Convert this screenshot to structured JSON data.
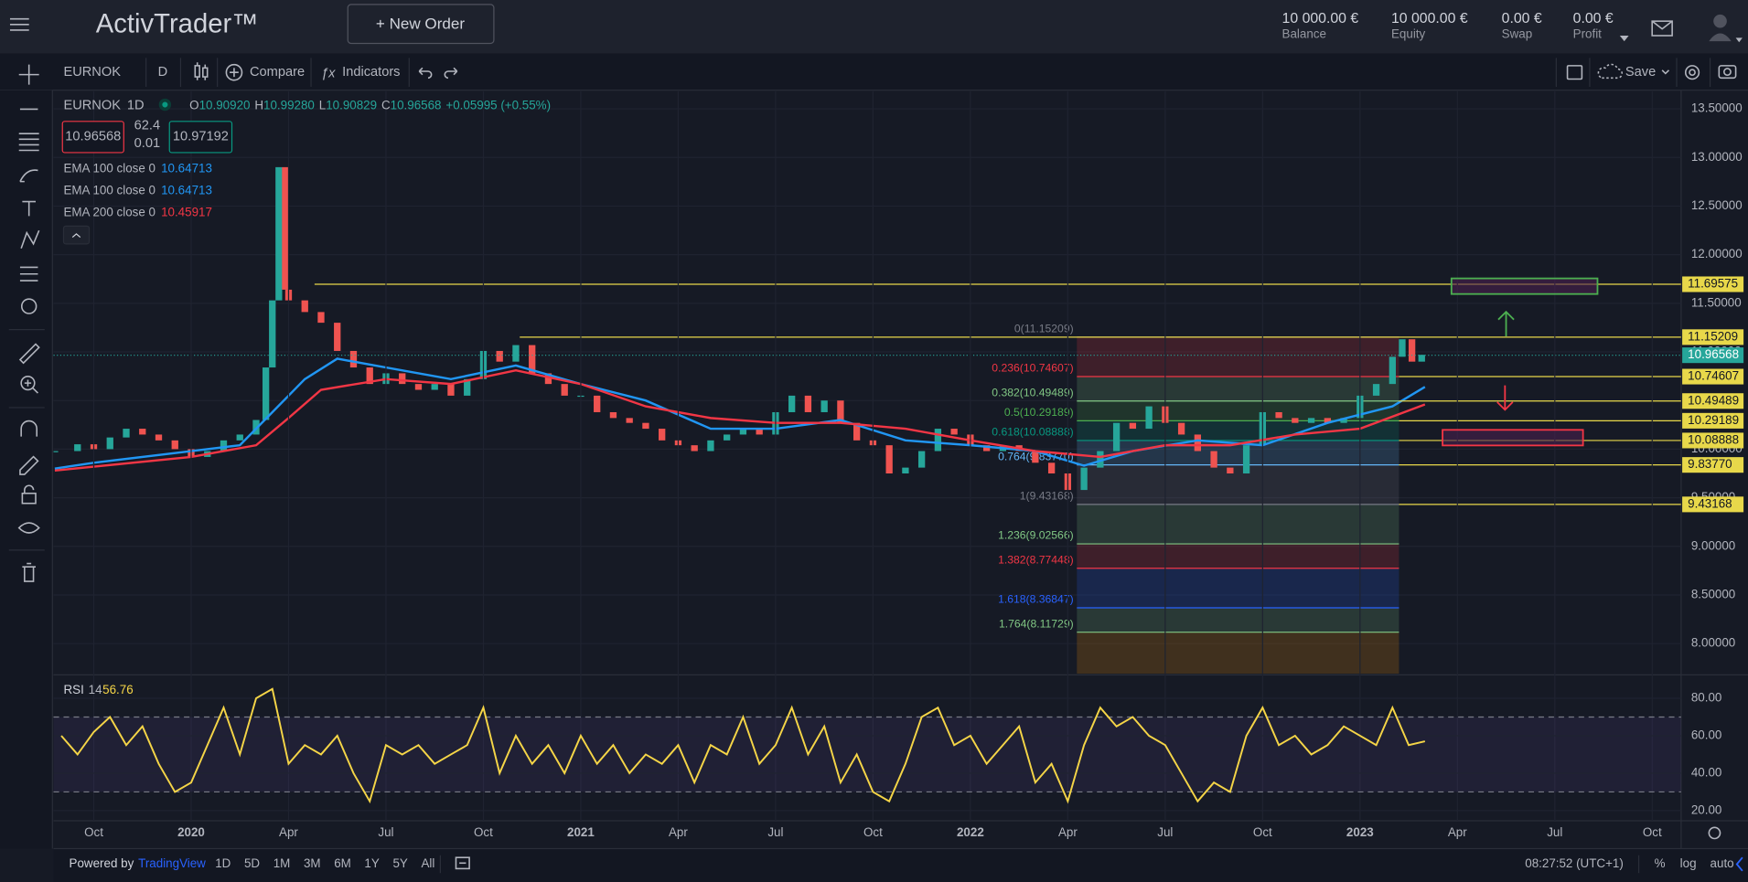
{
  "header": {
    "logo": "ActivTrader™",
    "new_order": "+  New Order",
    "account": [
      {
        "value": "10 000.00 €",
        "label": "Balance"
      },
      {
        "value": "10 000.00 €",
        "label": "Equity"
      },
      {
        "value": "0.00 €",
        "label": "Swap"
      },
      {
        "value": "0.00 €",
        "label": "Profit"
      }
    ]
  },
  "toolbar": {
    "symbol": "EURNOK",
    "interval": "D",
    "compare": "Compare",
    "indicators": "Indicators",
    "save": "Save"
  },
  "legend": {
    "symbol": "EURNOK",
    "interval": "1D",
    "ohlc": [
      {
        "key": "O",
        "value": "10.90920"
      },
      {
        "key": "H",
        "value": "10.99280"
      },
      {
        "key": "L",
        "value": "10.90829"
      },
      {
        "key": "C",
        "value": "10.96568"
      }
    ],
    "change": "+0.05995 (+0.55%)",
    "bid": "10.96568",
    "spread_top": "62.4",
    "spread": "0.01",
    "ask": "10.97192",
    "indicators": [
      {
        "name": "EMA 100 close 0",
        "value": "10.64713",
        "color": "#2196f3"
      },
      {
        "name": "EMA 100 close 0",
        "value": "10.64713",
        "color": "#2196f3"
      },
      {
        "name": "EMA 200 close 0",
        "value": "10.45917",
        "color": "#f23645"
      }
    ]
  },
  "chart_data": [
    {
      "type": "candlestick",
      "xlim": [
        -1.24,
        48.89
      ],
      "ylim": [
        7.69,
        13.68
      ],
      "grid": true,
      "xticks": [
        {
          "value": 0,
          "label": "Oct"
        },
        {
          "value": 3,
          "label": "2020"
        },
        {
          "value": 6,
          "label": "Apr"
        },
        {
          "value": 9,
          "label": "Jul"
        },
        {
          "value": 12,
          "label": "Oct"
        },
        {
          "value": 15,
          "label": "2021"
        },
        {
          "value": 18,
          "label": "Apr"
        },
        {
          "value": 21,
          "label": "Jul"
        },
        {
          "value": 24,
          "label": "Oct"
        },
        {
          "value": 27,
          "label": "2022"
        },
        {
          "value": 30,
          "label": "Apr"
        },
        {
          "value": 33,
          "label": "Jul"
        },
        {
          "value": 36,
          "label": "Oct"
        },
        {
          "value": 39,
          "label": "2023"
        },
        {
          "value": 42,
          "label": "Apr"
        },
        {
          "value": 45,
          "label": "Jul"
        },
        {
          "value": 48,
          "label": "Oct"
        }
      ],
      "yticks": [
        {
          "value": 8,
          "label": "8.00000"
        },
        {
          "value": 8.5,
          "label": "8.50000"
        },
        {
          "value": 9,
          "label": "9.00000"
        },
        {
          "value": 9.5,
          "label": "9.50000"
        },
        {
          "value": 10,
          "label": "10.00000"
        },
        {
          "value": 10.5,
          "label": "10.50000"
        },
        {
          "value": 11,
          "label": "11.00000"
        },
        {
          "value": 11.5,
          "label": "11.50000"
        },
        {
          "value": 12,
          "label": "12.00000"
        },
        {
          "value": 12.5,
          "label": "12.50000"
        },
        {
          "value": 13,
          "label": "13.00000"
        },
        {
          "value": 13.5,
          "label": "13.50000"
        }
      ],
      "series": [
        {
          "colors": [
            "#26a69a",
            "#ef5350"
          ],
          "x": [
            -1.2,
            -0.5,
            0,
            0.5,
            1,
            1.5,
            2,
            2.5,
            3,
            3.5,
            4,
            4.5,
            5,
            5.3,
            5.5,
            5.7,
            5.9,
            6,
            6.5,
            7,
            7.5,
            8,
            8.5,
            9,
            9.5,
            10,
            10.5,
            11,
            11.5,
            12,
            12.5,
            13,
            13.5,
            14,
            14.5,
            15,
            15.5,
            16,
            16.5,
            17,
            17.5,
            18,
            18.5,
            19,
            19.5,
            20,
            20.5,
            21,
            21.5,
            22,
            22.5,
            23,
            23.5,
            24,
            24.5,
            25,
            25.5,
            26,
            26.5,
            27,
            27.5,
            28,
            28.5,
            29,
            29.5,
            30,
            30.5,
            31,
            31.5,
            32,
            32.5,
            33,
            33.5,
            34,
            34.5,
            35,
            35.5,
            36,
            36.5,
            37,
            37.5,
            38,
            38.5,
            39,
            39.5,
            40,
            40.3,
            40.6,
            40.9
          ],
          "values": [
            9.98,
            10.05,
            10.0,
            10.12,
            10.21,
            10.15,
            10.09,
            10.0,
            9.92,
            9.98,
            10.09,
            10.15,
            10.3,
            10.84,
            11.53,
            12.9,
            11.64,
            11.53,
            11.41,
            11.3,
            11.01,
            10.84,
            10.67,
            10.78,
            10.67,
            10.61,
            10.67,
            10.55,
            10.72,
            11.01,
            10.9,
            11.07,
            10.78,
            10.67,
            10.55,
            10.55,
            10.38,
            10.32,
            10.27,
            10.21,
            10.09,
            10.04,
            9.98,
            10.09,
            10.15,
            10.21,
            10.15,
            10.38,
            10.55,
            10.38,
            10.5,
            10.27,
            10.09,
            10.04,
            9.75,
            9.81,
            9.98,
            10.21,
            10.15,
            10.04,
            9.98,
            10.04,
            9.98,
            9.86,
            9.75,
            9.58,
            9.81,
            9.98,
            10.27,
            10.21,
            10.44,
            10.27,
            10.15,
            9.98,
            9.81,
            9.75,
            10.04,
            10.38,
            10.32,
            10.27,
            10.32,
            10.27,
            10.32,
            10.55,
            10.67,
            10.95,
            11.13,
            10.9,
            10.97
          ]
        },
        {
          "color": "#2196f3",
          "x": [
            -1.2,
            0,
            3,
            4.5,
            5.5,
            6.5,
            7.5,
            9,
            11,
            13,
            15,
            17,
            19,
            21,
            23,
            25,
            27,
            29,
            30.5,
            32,
            34,
            36,
            38,
            40,
            41
          ],
          "values": [
            9.8,
            9.86,
            9.98,
            10.04,
            10.38,
            10.72,
            10.93,
            10.84,
            10.72,
            10.86,
            10.67,
            10.5,
            10.21,
            10.21,
            10.3,
            10.09,
            10.04,
            9.98,
            9.83,
            9.98,
            10.09,
            10.04,
            10.27,
            10.44,
            10.64
          ]
        },
        {
          "color": "#f23645",
          "x": [
            -1.2,
            3,
            5,
            6,
            7,
            9,
            11,
            13,
            15,
            17,
            19,
            21,
            23,
            25,
            27,
            29,
            31,
            33,
            35,
            37,
            39,
            41
          ],
          "values": [
            9.78,
            9.92,
            10.04,
            10.32,
            10.61,
            10.72,
            10.67,
            10.81,
            10.67,
            10.44,
            10.32,
            10.27,
            10.27,
            10.21,
            10.09,
            9.98,
            9.92,
            10.04,
            10.04,
            10.15,
            10.21,
            10.46
          ]
        }
      ],
      "last_price": {
        "value": 10.96568,
        "label": "10.96568",
        "color": "#26a69a"
      },
      "levels": {
        "color": "#e8d84a",
        "items": [
          {
            "value": 11.69575,
            "label": "11.69575",
            "x_start": 6.8
          },
          {
            "value": 11.15209,
            "label": "11.15209",
            "x_start": 13.12
          }
        ]
      },
      "fib": {
        "x_range": [
          30.28,
          40.2
        ],
        "levels": [
          {
            "value": 11.15209,
            "label": "0(11.15209)",
            "color": "#787b86"
          },
          {
            "value": 10.74607,
            "label": "0.236(10.74607)",
            "color": "#f23645",
            "axis_label": "10.74607"
          },
          {
            "value": 10.49489,
            "label": "0.382(10.49489)",
            "color": "#81c784",
            "axis_label": "10.49489"
          },
          {
            "value": 10.29189,
            "label": "0.5(10.29189)",
            "color": "#4caf50",
            "axis_label": "10.29189"
          },
          {
            "value": 10.08888,
            "label": "0.618(10.08888)",
            "color": "#089981",
            "axis_label": "10.08888"
          },
          {
            "value": 9.8377,
            "label": "0.764(9.83770)",
            "color": "#64b5f6",
            "axis_label": "9.83770"
          },
          {
            "value": 9.43168,
            "label": "1(9.43168)",
            "color": "#787b86",
            "axis_label": "9.43168"
          },
          {
            "value": 9.02566,
            "label": "1.236(9.02566)",
            "color": "#81c784"
          },
          {
            "value": 8.77448,
            "label": "1.382(8.77448)",
            "color": "#f23645"
          },
          {
            "value": 8.36847,
            "label": "1.618(8.36847)",
            "color": "#2962ff"
          },
          {
            "value": 8.11729,
            "label": "1.764(8.11729)",
            "color": "#81c784"
          }
        ]
      }
    },
    {
      "type": "line",
      "title": "RSI",
      "subtitle": "14",
      "annotation": "56.76",
      "color": "#f5d547",
      "xlim": [
        -1.24,
        48.89
      ],
      "ylim": [
        14.6,
        91.9
      ],
      "band": [
        30,
        70
      ],
      "grid": true,
      "yticks": [
        {
          "value": 20,
          "label": "20.00"
        },
        {
          "value": 40,
          "label": "40.00"
        },
        {
          "value": 60,
          "label": "60.00"
        },
        {
          "value": 80,
          "label": "80.00"
        }
      ],
      "x": [
        -1,
        -0.5,
        0,
        0.5,
        1,
        1.5,
        2,
        2.5,
        3,
        3.5,
        4,
        4.5,
        5,
        5.5,
        6,
        6.5,
        7,
        7.5,
        8,
        8.5,
        9,
        9.5,
        10,
        10.5,
        11,
        11.5,
        12,
        12.5,
        13,
        13.5,
        14,
        14.5,
        15,
        15.5,
        16,
        16.5,
        17,
        17.5,
        18,
        18.5,
        19,
        19.5,
        20,
        20.5,
        21,
        21.5,
        22,
        22.5,
        23,
        23.5,
        24,
        24.5,
        25,
        25.5,
        26,
        26.5,
        27,
        27.5,
        28,
        28.5,
        29,
        29.5,
        30,
        30.5,
        31,
        31.5,
        32,
        32.5,
        33,
        33.5,
        34,
        34.5,
        35,
        35.5,
        36,
        36.5,
        37,
        37.5,
        38,
        38.5,
        39,
        39.5,
        40,
        40.5,
        41
      ],
      "values": [
        60,
        50,
        62,
        70,
        55,
        65,
        45,
        30,
        35,
        55,
        75,
        50,
        80,
        85,
        45,
        55,
        50,
        60,
        40,
        25,
        55,
        50,
        55,
        45,
        50,
        55,
        75,
        40,
        60,
        45,
        55,
        40,
        60,
        45,
        55,
        40,
        50,
        45,
        55,
        35,
        55,
        50,
        70,
        45,
        55,
        75,
        50,
        65,
        35,
        50,
        30,
        25,
        45,
        70,
        75,
        55,
        60,
        45,
        55,
        65,
        35,
        45,
        25,
        55,
        75,
        65,
        70,
        60,
        55,
        40,
        25,
        35,
        30,
        60,
        75,
        55,
        60,
        50,
        55,
        65,
        60,
        55,
        75,
        55,
        57
      ]
    }
  ],
  "footer": {
    "powered": "Powered by",
    "brand": "TradingView",
    "ranges": [
      "1D",
      "5D",
      "1M",
      "3M",
      "6M",
      "1Y",
      "5Y",
      "All"
    ],
    "time": "08:27:52 (UTC+1)",
    "percent": "%",
    "log": "log",
    "auto": "auto"
  }
}
